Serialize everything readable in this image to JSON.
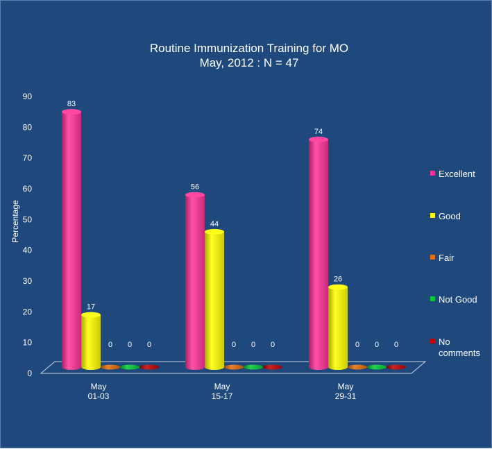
{
  "chart_data": {
    "type": "bar",
    "title": "Routine Immunization Training for MO",
    "subtitle": "May, 2012 : N = 47",
    "xlabel": "",
    "ylabel": "Percentage",
    "ylim": [
      0,
      90
    ],
    "yticks": [
      0,
      10,
      20,
      30,
      40,
      50,
      60,
      70,
      80,
      90
    ],
    "categories": [
      [
        "May",
        "01-03"
      ],
      [
        "May",
        "15-17"
      ],
      [
        "May",
        "29-31"
      ]
    ],
    "series": [
      {
        "name": "Excellent",
        "values": [
          83,
          56,
          74
        ],
        "color": "#ff3399"
      },
      {
        "name": "Good",
        "values": [
          17,
          44,
          26
        ],
        "color": "#ffff00"
      },
      {
        "name": "Fair",
        "values": [
          0,
          0,
          0
        ],
        "color": "#e46c0a"
      },
      {
        "name": "Not Good",
        "values": [
          0,
          0,
          0
        ],
        "color": "#00cc33"
      },
      {
        "name": "No comments",
        "legend_lines": [
          "No",
          "comments"
        ],
        "values": [
          0,
          0,
          0
        ],
        "color": "#c00000"
      }
    ],
    "legend_position": "right",
    "grid": false,
    "style": "3d-cylinder"
  }
}
